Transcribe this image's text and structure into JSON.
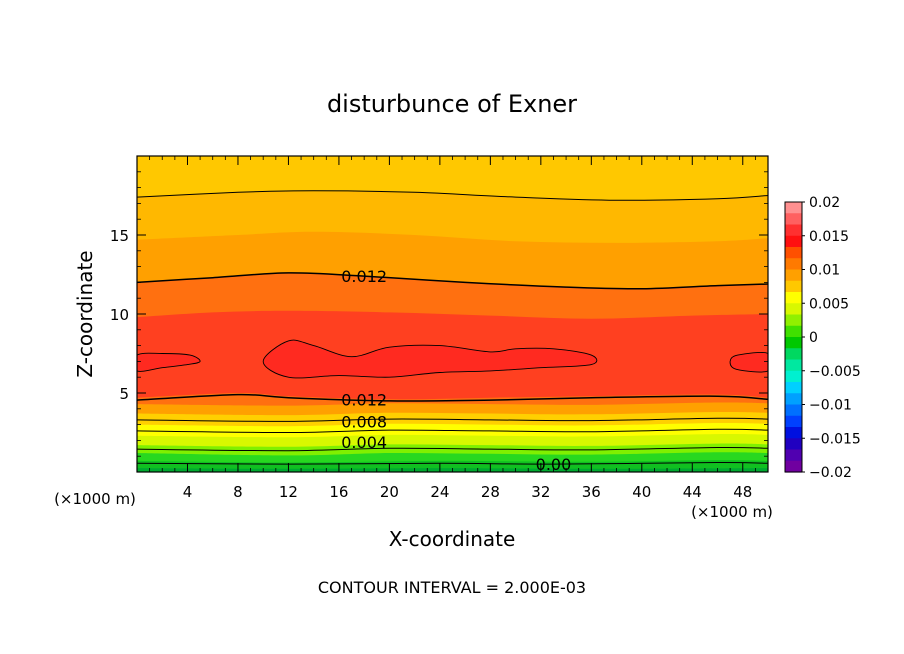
{
  "chart_data": {
    "type": "contour",
    "title": "disturbunce of Exner",
    "xlabel": "X-coordinate",
    "ylabel": "Z-coordinate",
    "x_unit": "(×1000 m)",
    "y_unit": "(×1000 m)",
    "footer": "CONTOUR INTERVAL = 2.000E-03",
    "xlim": [
      0,
      50
    ],
    "ylim": [
      0,
      20
    ],
    "x_ticks": [
      4,
      8,
      12,
      16,
      20,
      24,
      28,
      32,
      36,
      40,
      44,
      48
    ],
    "y_ticks": [
      5,
      10,
      15
    ],
    "contour_interval": 0.002,
    "contour_labels": [
      {
        "text": "0.012",
        "x": 18,
        "y": 12.4
      },
      {
        "text": "0.012",
        "x": 18,
        "y": 4.6
      },
      {
        "text": "0.008",
        "x": 18,
        "y": 3.2
      },
      {
        "text": "0.004",
        "x": 18,
        "y": 1.9
      },
      {
        "text": "0.00",
        "x": 33,
        "y": 0.5
      }
    ],
    "bands": [
      {
        "lo": -0.002,
        "hi": 0.0,
        "color": "#00aa30",
        "top": [
          [
            0,
            0.25
          ],
          [
            12,
            0.2
          ],
          [
            24,
            0.25
          ],
          [
            36,
            0.2
          ],
          [
            50,
            0.25
          ]
        ]
      },
      {
        "lo": 0.0,
        "hi": 0.002,
        "color": "#10c020",
        "top": [
          [
            0,
            0.7
          ],
          [
            12,
            0.6
          ],
          [
            24,
            0.7
          ],
          [
            36,
            0.65
          ],
          [
            46,
            0.75
          ],
          [
            50,
            0.7
          ]
        ]
      },
      {
        "lo": 0.002,
        "hi": 0.004,
        "color": "#28d820",
        "top": [
          [
            0,
            1.2
          ],
          [
            12,
            1.05
          ],
          [
            20,
            1.2
          ],
          [
            28,
            1.15
          ],
          [
            36,
            1.1
          ],
          [
            46,
            1.25
          ],
          [
            50,
            1.2
          ]
        ]
      },
      {
        "lo": 0.004,
        "hi": 0.006,
        "color": "#80f000",
        "top": [
          [
            0,
            1.7
          ],
          [
            12,
            1.6
          ],
          [
            20,
            1.75
          ],
          [
            28,
            1.7
          ],
          [
            36,
            1.65
          ],
          [
            46,
            1.8
          ],
          [
            50,
            1.75
          ]
        ]
      },
      {
        "lo": 0.006,
        "hi": 0.008,
        "color": "#d8f800",
        "top": [
          [
            0,
            2.3
          ],
          [
            12,
            2.2
          ],
          [
            20,
            2.35
          ],
          [
            28,
            2.3
          ],
          [
            36,
            2.25
          ],
          [
            46,
            2.4
          ],
          [
            50,
            2.35
          ]
        ]
      },
      {
        "lo": 0.008,
        "hi": 0.01,
        "color": "#ffff00",
        "top": [
          [
            0,
            3.0
          ],
          [
            12,
            2.9
          ],
          [
            20,
            3.05
          ],
          [
            28,
            3.0
          ],
          [
            36,
            2.95
          ],
          [
            46,
            3.1
          ],
          [
            50,
            3.05
          ]
        ]
      },
      {
        "lo": 0.01,
        "hi": 0.011,
        "color": "#ffd000",
        "top": [
          [
            0,
            3.7
          ],
          [
            12,
            3.6
          ],
          [
            20,
            3.75
          ],
          [
            28,
            3.7
          ],
          [
            36,
            3.65
          ],
          [
            46,
            3.8
          ],
          [
            50,
            3.75
          ]
        ]
      },
      {
        "lo": 0.011,
        "hi": 0.012,
        "color": "#ffa000",
        "top": [
          [
            0,
            4.3
          ],
          [
            12,
            4.2
          ],
          [
            20,
            4.35
          ],
          [
            28,
            4.3
          ],
          [
            36,
            4.25
          ],
          [
            46,
            4.4
          ],
          [
            50,
            4.35
          ]
        ]
      },
      {
        "lo": 0.012,
        "hi": 0.013,
        "color": "#ff7010",
        "top": [
          [
            0,
            4.7
          ],
          [
            8,
            5.0
          ],
          [
            12,
            4.8
          ],
          [
            20,
            4.6
          ],
          [
            28,
            4.7
          ],
          [
            36,
            4.8
          ],
          [
            46,
            4.9
          ],
          [
            50,
            4.7
          ]
        ]
      },
      {
        "lo": 0.013,
        "hi": 0.0135,
        "color": "#ff4020",
        "top": [
          [
            0,
            9.8
          ],
          [
            6,
            10.1
          ],
          [
            12,
            10.2
          ],
          [
            20,
            10.1
          ],
          [
            28,
            9.9
          ],
          [
            36,
            9.7
          ],
          [
            44,
            9.9
          ],
          [
            50,
            10.0
          ]
        ]
      },
      {
        "lo": 0.012,
        "hi": 0.013,
        "color": "#ff7010",
        "top": [
          [
            0,
            12.0
          ],
          [
            6,
            12.3
          ],
          [
            12,
            12.6
          ],
          [
            18,
            12.4
          ],
          [
            26,
            12.0
          ],
          [
            34,
            11.7
          ],
          [
            40,
            11.6
          ],
          [
            46,
            11.8
          ],
          [
            50,
            11.9
          ]
        ]
      },
      {
        "lo": 0.011,
        "hi": 0.012,
        "color": "#ffa000",
        "top": [
          [
            0,
            14.7
          ],
          [
            8,
            15.0
          ],
          [
            14,
            15.2
          ],
          [
            22,
            15.0
          ],
          [
            30,
            14.6
          ],
          [
            38,
            14.5
          ],
          [
            46,
            14.6
          ],
          [
            50,
            14.8
          ]
        ]
      },
      {
        "lo": 0.01,
        "hi": 0.011,
        "color": "#ffb800",
        "top": [
          [
            0,
            17.4
          ],
          [
            8,
            17.7
          ],
          [
            14,
            17.8
          ],
          [
            22,
            17.7
          ],
          [
            30,
            17.4
          ],
          [
            38,
            17.2
          ],
          [
            46,
            17.3
          ],
          [
            50,
            17.5
          ]
        ]
      },
      {
        "lo": 0.009,
        "hi": 0.01,
        "color": "#ffc800",
        "top": [
          [
            0,
            20
          ],
          [
            50,
            20
          ]
        ]
      }
    ],
    "core_regions": [
      {
        "color": "#ff2a20",
        "points": [
          [
            0,
            6.4
          ],
          [
            2,
            6.6
          ],
          [
            4,
            6.8
          ],
          [
            5,
            7.0
          ],
          [
            4.2,
            7.4
          ],
          [
            2,
            7.5
          ],
          [
            0,
            7.4
          ]
        ]
      },
      {
        "color": "#ff2a20",
        "points": [
          [
            10,
            7.0
          ],
          [
            12,
            8.3
          ],
          [
            14,
            8.0
          ],
          [
            17,
            7.3
          ],
          [
            20,
            7.9
          ],
          [
            24,
            8.0
          ],
          [
            28,
            7.6
          ],
          [
            30,
            7.8
          ],
          [
            33,
            7.8
          ],
          [
            36,
            7.4
          ],
          [
            36,
            6.8
          ],
          [
            32,
            6.6
          ],
          [
            28,
            6.4
          ],
          [
            24,
            6.3
          ],
          [
            20,
            6.0
          ],
          [
            16,
            6.1
          ],
          [
            12,
            6.0
          ]
        ]
      },
      {
        "color": "#ff2a20",
        "points": [
          [
            50,
            6.4
          ],
          [
            47.5,
            6.5
          ],
          [
            47,
            7.0
          ],
          [
            47.6,
            7.4
          ],
          [
            50,
            7.5
          ]
        ]
      }
    ],
    "contour_lines": [
      [
        [
          0,
          0.55
        ],
        [
          12,
          0.5
        ],
        [
          24,
          0.55
        ],
        [
          33,
          0.5
        ],
        [
          46,
          0.6
        ],
        [
          50,
          0.55
        ]
      ],
      [
        [
          0,
          1.45
        ],
        [
          12,
          1.35
        ],
        [
          20,
          1.5
        ],
        [
          28,
          1.45
        ],
        [
          36,
          1.4
        ],
        [
          46,
          1.55
        ],
        [
          50,
          1.5
        ]
      ],
      [
        [
          0,
          2.6
        ],
        [
          12,
          2.5
        ],
        [
          20,
          2.65
        ],
        [
          28,
          2.6
        ],
        [
          36,
          2.55
        ],
        [
          46,
          2.7
        ],
        [
          50,
          2.65
        ]
      ],
      [
        [
          0,
          3.3
        ],
        [
          12,
          3.2
        ],
        [
          20,
          3.35
        ],
        [
          28,
          3.3
        ],
        [
          36,
          3.25
        ],
        [
          46,
          3.4
        ],
        [
          50,
          3.35
        ]
      ],
      [
        [
          0,
          4.55
        ],
        [
          8,
          4.9
        ],
        [
          12,
          4.7
        ],
        [
          20,
          4.5
        ],
        [
          28,
          4.55
        ],
        [
          36,
          4.7
        ],
        [
          46,
          4.8
        ],
        [
          50,
          4.6
        ]
      ],
      [
        [
          0,
          12.0
        ],
        [
          6,
          12.3
        ],
        [
          12,
          12.6
        ],
        [
          18,
          12.4
        ],
        [
          26,
          12.0
        ],
        [
          34,
          11.7
        ],
        [
          40,
          11.6
        ],
        [
          46,
          11.8
        ],
        [
          50,
          11.9
        ]
      ],
      [
        [
          0,
          17.4
        ],
        [
          8,
          17.7
        ],
        [
          14,
          17.8
        ],
        [
          22,
          17.7
        ],
        [
          30,
          17.4
        ],
        [
          38,
          17.2
        ],
        [
          46,
          17.3
        ],
        [
          50,
          17.5
        ]
      ]
    ],
    "colorbar": {
      "ticks": [
        0.02,
        0.015,
        0.01,
        0.005,
        0,
        -0.005,
        -0.01,
        -0.015,
        -0.02
      ],
      "tick_labels": [
        "0.02",
        "0.015",
        "0.01",
        "0.005",
        "0",
        "−0.005",
        "−0.01",
        "−0.015",
        "−0.02"
      ],
      "colors": [
        "#ff9090",
        "#ff6060",
        "#ff3030",
        "#ff1010",
        "#ff5000",
        "#ff7a00",
        "#ffa000",
        "#ffc800",
        "#ffff00",
        "#d8f800",
        "#90f000",
        "#40e000",
        "#00c800",
        "#00d860",
        "#00e8a0",
        "#00f0d0",
        "#00d0ff",
        "#00a0ff",
        "#0070ff",
        "#0040ff",
        "#0010e0",
        "#2000c0",
        "#5000b0",
        "#7000a0"
      ]
    }
  }
}
